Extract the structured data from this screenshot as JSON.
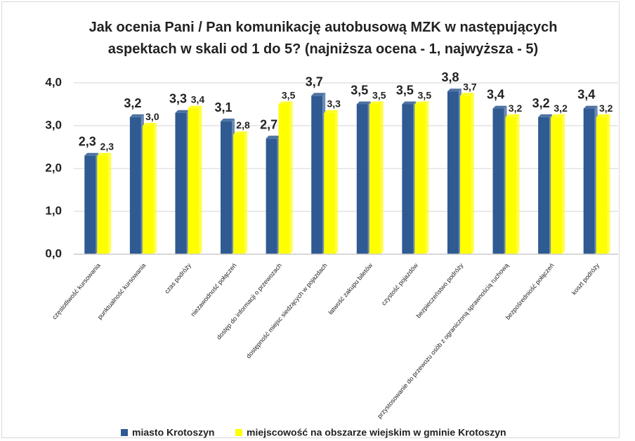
{
  "chart_data": {
    "type": "bar",
    "title": "Jak ocenia Pani / Pan komunikację autobusową MZK w następujących aspektach w skali od 1 do 5? (najniższa ocena - 1, najwyższa - 5)",
    "categories": [
      "częstotliwość kursowania",
      "punktualność kursowania",
      "czas podróży",
      "niezawodność połączeń",
      "dostęp do informacji o przewozach",
      "dostępność miejsc siedzących w pojazdach",
      "łatwość zakupu biletów",
      "czystość pojazdów",
      "bezpieczeństwo podróży",
      "przystosowanie do przewozu osób z ograniczoną sprawnością ruchową",
      "bezpośredniość połączeń",
      "koszt podróży"
    ],
    "series": [
      {
        "name": "miasto Krotoszyn",
        "color": "#2f5a92",
        "values": [
          2.3,
          3.2,
          3.3,
          3.1,
          2.7,
          3.7,
          3.5,
          3.5,
          3.8,
          3.4,
          3.2,
          3.4
        ],
        "value_labels": [
          "2,3",
          "3,2",
          "3,3",
          "3,1",
          "2,7",
          "3,7",
          "3,5",
          "3,5",
          "3,8",
          "3,4",
          "3,2",
          "3,4"
        ]
      },
      {
        "name": "miejscowość na obszarze wiejskim w gminie Krotoszyn",
        "color": "#ffff00",
        "values": [
          2.3,
          3.0,
          3.4,
          2.8,
          3.5,
          3.3,
          3.5,
          3.5,
          3.7,
          3.2,
          3.2,
          3.2
        ],
        "value_labels": [
          "2,3",
          "3,0",
          "3,4",
          "2,8",
          "3,5",
          "3,3",
          "3,5",
          "3,5",
          "3,7",
          "3,2",
          "3,2",
          "3,2"
        ]
      }
    ],
    "ylim": [
      0,
      4
    ],
    "yticks": [
      {
        "value": 0,
        "label": "0,0"
      },
      {
        "value": 1,
        "label": "1,0"
      },
      {
        "value": 2,
        "label": "2,0"
      },
      {
        "value": 3,
        "label": "3,0"
      },
      {
        "value": 4,
        "label": "4,0"
      }
    ],
    "grid": true,
    "legend": "bottom"
  }
}
